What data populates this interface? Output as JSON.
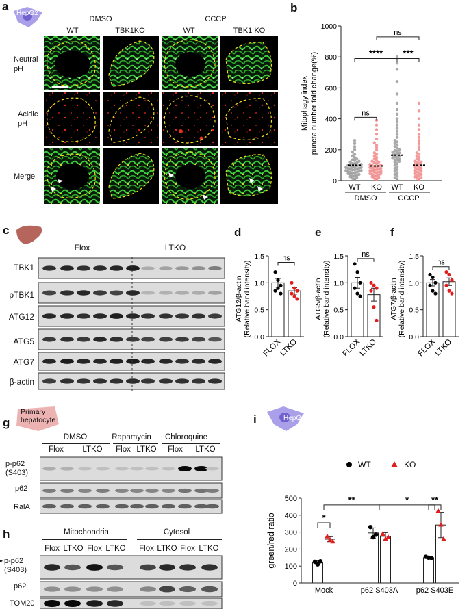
{
  "colors": {
    "wt": "#000000",
    "ko": "#e11d1d",
    "cell_green": "#39c439",
    "cell_red": "#c8201c",
    "hepg2_icon": "#9b8fe6",
    "liver_icon": "#b5655c",
    "hepatocyte_icon": "#e8a0a0",
    "outline": "#f2e11a"
  },
  "panel_a": {
    "letter": "a",
    "cell_label": "HepG2",
    "groups": [
      "DMSO",
      "CCCP"
    ],
    "columns": [
      "WT",
      "TBK1KO",
      "WT",
      "TBK1 KO"
    ],
    "rows": [
      {
        "line1": "Neutral",
        "line2": "pH"
      },
      {
        "line1": "Acidic",
        "line2": "pH"
      },
      {
        "line1": "Merge",
        "line2": ""
      }
    ]
  },
  "panel_b": {
    "letter": "b"
  },
  "panel_c": {
    "letter": "c",
    "groups": [
      "Flox",
      "LTKO"
    ],
    "proteins": [
      "TBK1",
      "pTBK1",
      "ATG12",
      "ATG5",
      "ATG7",
      "β-actin"
    ]
  },
  "panel_d": {
    "letter": "d"
  },
  "panel_e": {
    "letter": "e"
  },
  "panel_f": {
    "letter": "f"
  },
  "panel_g": {
    "letter": "g",
    "cell_label_1": "Primary",
    "cell_label_2": "hepatocyte",
    "treatments": [
      "DMSO",
      "Rapamycin",
      "Chloroquine"
    ],
    "lanes": [
      "Flox",
      "LTKO",
      "Flox",
      "LTKO",
      "Flox",
      "LTKO"
    ],
    "proteins": [
      {
        "line1": "p-p62",
        "line2": "(S403)"
      },
      {
        "line1": "p62",
        "line2": ""
      },
      {
        "line1": "RalA",
        "line2": ""
      }
    ]
  },
  "panel_h": {
    "letter": "h",
    "fractions": [
      "Mitochondria",
      "Cytosol"
    ],
    "lanes": [
      "Flox",
      "LTKO",
      "Flox",
      "LTKO",
      "Flox",
      "LTKO",
      "Flox",
      "LTKO"
    ],
    "proteins": [
      {
        "line1": "p-p62",
        "line2": "(S403)"
      },
      {
        "line1": "p62",
        "line2": ""
      },
      {
        "line1": "TOM20",
        "line2": ""
      }
    ]
  },
  "panel_i": {
    "letter": "i",
    "cell_label": "HepG2"
  },
  "chart_data": [
    {
      "id": "b",
      "type": "scatter",
      "ylabel_line1": "Mitophagy index",
      "ylabel_line2": "puncta number fold change(%)",
      "ylim": [
        0,
        1000
      ],
      "yticks": [
        0,
        200,
        400,
        600,
        800,
        1000
      ],
      "categories": [
        "WT",
        "KO",
        "WT",
        "KO"
      ],
      "groups": [
        "DMSO",
        "CCCP"
      ],
      "means": [
        100,
        95,
        165,
        100
      ],
      "series_colors": [
        "#9a9a9a",
        "#f08a8a",
        "#9a9a9a",
        "#f08a8a"
      ],
      "points": [
        [
          5,
          10,
          15,
          20,
          25,
          30,
          30,
          35,
          40,
          40,
          45,
          50,
          50,
          55,
          55,
          60,
          60,
          65,
          65,
          70,
          70,
          75,
          75,
          80,
          80,
          85,
          85,
          90,
          90,
          95,
          95,
          100,
          100,
          105,
          110,
          110,
          115,
          120,
          125,
          130,
          135,
          140,
          150,
          160,
          170,
          185,
          200,
          220,
          240,
          260
        ],
        [
          5,
          10,
          15,
          20,
          25,
          30,
          30,
          35,
          40,
          45,
          45,
          50,
          55,
          55,
          60,
          60,
          65,
          70,
          70,
          75,
          80,
          80,
          85,
          90,
          90,
          95,
          100,
          100,
          105,
          110,
          115,
          120,
          125,
          130,
          140,
          150,
          160,
          170,
          180,
          200,
          215,
          230,
          245,
          270,
          300,
          330,
          360,
          390
        ],
        [
          5,
          10,
          20,
          30,
          40,
          50,
          60,
          70,
          80,
          90,
          100,
          110,
          120,
          125,
          130,
          135,
          140,
          145,
          150,
          155,
          160,
          165,
          170,
          175,
          180,
          185,
          190,
          195,
          200,
          210,
          220,
          230,
          240,
          250,
          260,
          280,
          300,
          320,
          340,
          360,
          380,
          400,
          430,
          460,
          500,
          560,
          640,
          720,
          760,
          800
        ],
        [
          5,
          10,
          15,
          20,
          25,
          30,
          35,
          40,
          45,
          50,
          55,
          60,
          65,
          70,
          75,
          80,
          85,
          90,
          95,
          100,
          105,
          110,
          115,
          120,
          125,
          130,
          140,
          150,
          160,
          170,
          180,
          200,
          220,
          240,
          260,
          280,
          300,
          330,
          360,
          400,
          450,
          500
        ]
      ],
      "significance": [
        {
          "from": 0,
          "to": 1,
          "label": "ns",
          "y": 410
        },
        {
          "from": 0,
          "to": 2,
          "label": "****",
          "y": 790
        },
        {
          "from": 2,
          "to": 3,
          "label": "***",
          "y": 790
        },
        {
          "from": 1,
          "to": 3,
          "label": "ns",
          "y": 930
        }
      ]
    },
    {
      "id": "d",
      "type": "bar",
      "ylabel_line1": "ATG12/β-actin",
      "ylabel_line2": "(Relative band intensity)",
      "ylim": [
        0,
        1.5
      ],
      "yticks": [
        "0.0",
        "0.5",
        "1.0",
        "1.5"
      ],
      "categories": [
        "FLOX",
        "LTKO"
      ],
      "values": [
        1.0,
        0.85
      ],
      "errors": [
        0.08,
        0.06
      ],
      "points": [
        [
          1.2,
          1.05,
          0.95,
          0.85,
          0.9,
          0.8
        ],
        [
          1.0,
          0.9,
          0.85,
          0.8,
          0.75,
          0.7
        ]
      ],
      "significance": {
        "label": "ns",
        "y": 1.38
      }
    },
    {
      "id": "e",
      "type": "bar",
      "ylabel_line1": "ATG5/β-actin",
      "ylabel_line2": "(Relative band intensity)",
      "ylim": [
        0,
        1.5
      ],
      "yticks": [
        "0.0",
        "0.5",
        "1.0",
        "1.5"
      ],
      "categories": [
        "FLOX",
        "LTKO"
      ],
      "values": [
        1.0,
        0.78
      ],
      "errors": [
        0.1,
        0.12
      ],
      "points": [
        [
          1.35,
          1.2,
          1.0,
          0.9,
          0.8,
          0.75
        ],
        [
          1.0,
          0.95,
          0.9,
          0.85,
          0.55,
          0.3
        ]
      ],
      "significance": {
        "label": "ns",
        "y": 1.45
      }
    },
    {
      "id": "f",
      "type": "bar",
      "ylabel_line1": "ATG7/β-actin",
      "ylabel_line2": "(Relative band intensity)",
      "ylim": [
        0,
        1.5
      ],
      "yticks": [
        "0.0",
        "0.5",
        "1.0",
        "1.5"
      ],
      "categories": [
        "FLOX",
        "LTKO"
      ],
      "values": [
        1.0,
        1.02
      ],
      "errors": [
        0.06,
        0.07
      ],
      "points": [
        [
          1.15,
          1.1,
          1.0,
          0.95,
          0.85,
          0.8
        ],
        [
          1.2,
          1.15,
          1.05,
          0.95,
          0.85,
          0.8
        ]
      ],
      "significance": {
        "label": "ns",
        "y": 1.3
      }
    },
    {
      "id": "i",
      "type": "bar",
      "ylabel": "green/red ratio",
      "ylim": [
        0,
        500
      ],
      "yticks": [
        0,
        100,
        200,
        300,
        400,
        500
      ],
      "legend": [
        {
          "name": "WT",
          "color": "#000000",
          "marker": "circle"
        },
        {
          "name": "KO",
          "color": "#e11d1d",
          "marker": "triangle"
        }
      ],
      "categories": [
        "Mock",
        "p62 S403A",
        "p62 S403E"
      ],
      "series": [
        {
          "name": "WT",
          "values": [
            120,
            295,
            150
          ],
          "errors": [
            12,
            30,
            5
          ],
          "points": [
            [
              125,
              110,
              128
            ],
            [
              330,
              270,
              285
            ],
            [
              155,
              150,
              148
            ]
          ]
        },
        {
          "name": "KO",
          "values": [
            258,
            275,
            342
          ],
          "errors": [
            15,
            22,
            75
          ],
          "points": [
            [
              275,
              255,
              245
            ],
            [
              290,
              260,
              270
            ],
            [
              425,
              345,
              260
            ]
          ]
        }
      ],
      "significance": [
        {
          "label": "*",
          "y": 355,
          "type": "within",
          "category": 0
        },
        {
          "label": "**",
          "y": 460,
          "type": "between",
          "from": 0,
          "to": 1
        },
        {
          "label": "*",
          "y": 460,
          "type": "between",
          "from": 1,
          "to": 2
        },
        {
          "label": "**",
          "y": 460,
          "type": "within",
          "category": 2
        }
      ]
    }
  ]
}
